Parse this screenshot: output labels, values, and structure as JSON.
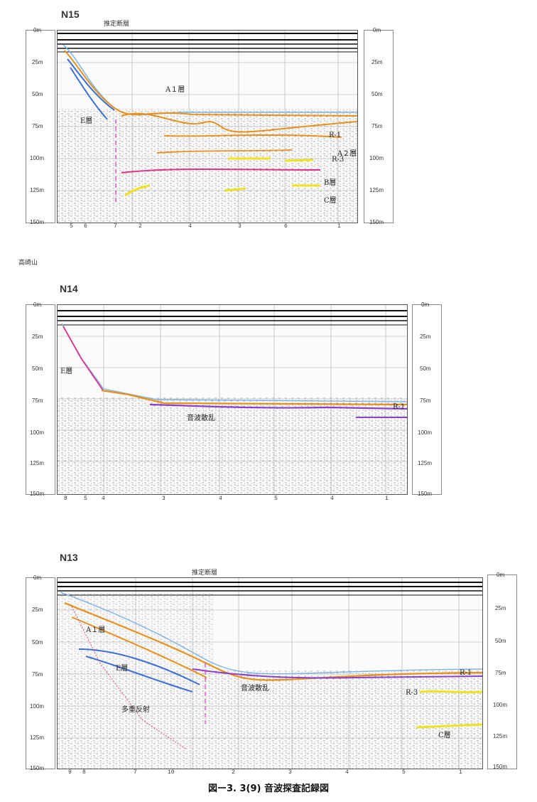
{
  "figure_caption": "図ー3. 3(9) 音波探査記録図",
  "side_note": "高崎山",
  "depth_ticks": [
    "0m",
    "25m",
    "50m",
    "75m",
    "100m",
    "125m",
    "150m"
  ],
  "colors": {
    "orange": "#e8901a",
    "blue": "#3a6fd6",
    "light_blue": "#7ab4e8",
    "yellow": "#f1e21e",
    "pink": "#e0348a",
    "purple": "#8a3fc9",
    "magenta_dash": "#d33cc0"
  },
  "panels": [
    {
      "id": "N15",
      "title": "N15",
      "header_note": "推定断層",
      "labels": {
        "a1": "A１層",
        "e": "E層",
        "r1": "R-1",
        "a2": "A２層",
        "r3": "R-3",
        "b": "B層",
        "c": "C層"
      },
      "bottom_numbers": [
        "5",
        "6",
        "7",
        "2",
        "4",
        "3",
        "6",
        "1"
      ]
    },
    {
      "id": "N14",
      "title": "N14",
      "labels": {
        "e": "E層",
        "scatter": "音波散乱",
        "r1": "R-1"
      },
      "bottom_numbers": [
        "8",
        "5",
        "4",
        "3",
        "4",
        "5",
        "4",
        "1"
      ]
    },
    {
      "id": "N13",
      "title": "N13",
      "header_note": "推定断層",
      "labels": {
        "a1": "A１層",
        "e": "E層",
        "scatter": "音波散乱",
        "multiple": "多重反射",
        "r1": "R-1",
        "r3": "R-3",
        "c": "C層"
      },
      "bottom_numbers": [
        "9",
        "8",
        "7",
        "10",
        "2",
        "3",
        "4",
        "5",
        "1"
      ]
    }
  ]
}
